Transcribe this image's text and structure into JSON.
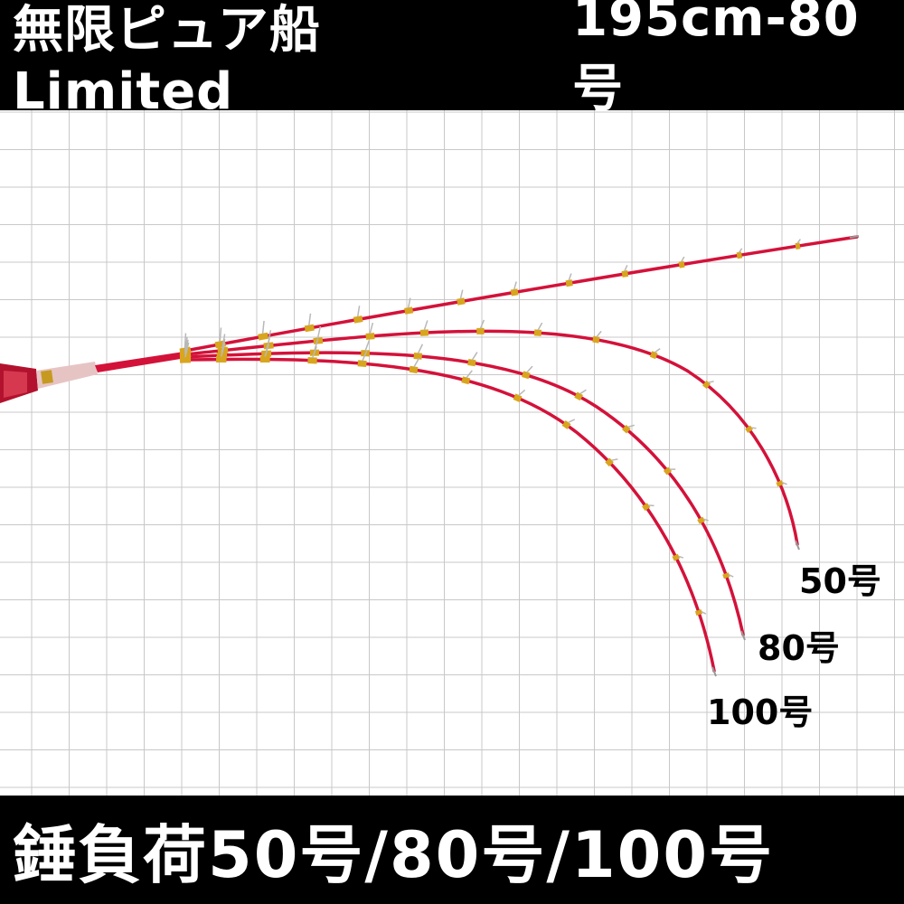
{
  "header": {
    "title_left": "無限ピュア船Limited",
    "title_right": "195cm-80号"
  },
  "footer": {
    "text": "錘負荷50号/80号/100号"
  },
  "labels": {
    "w50": "50号",
    "w80": "80号",
    "w100": "100号"
  },
  "colors": {
    "rod": "#d3123a",
    "guide_gold": "#d8a51e",
    "grid": "#c8c8c8",
    "banner": "#000000"
  }
}
